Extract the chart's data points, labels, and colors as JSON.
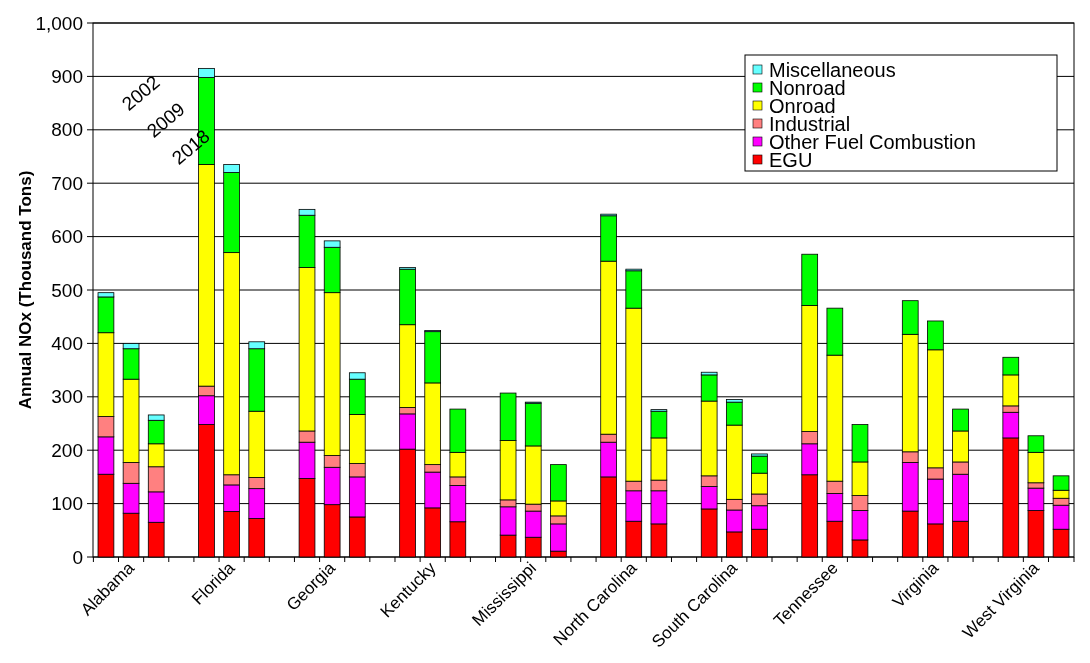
{
  "chart_data": {
    "type": "bar",
    "stacked": true,
    "ylabel": "Annual NOx (Thousand Tons)",
    "categories": [
      null,
      "Alabama",
      null,
      null,
      null,
      "Florida",
      null,
      null,
      null,
      "Georgia",
      null,
      null,
      null,
      "Kentucky",
      null,
      null,
      null,
      "Mississippi",
      null,
      null,
      null,
      "North Carolina",
      null,
      null,
      null,
      "South Carolina",
      null,
      null,
      null,
      "Tennessee",
      null,
      null,
      null,
      "Virginia",
      null,
      null,
      null,
      "West Virginia",
      null
    ],
    "series": [
      {
        "name": "EGU",
        "color": "#ff0000",
        "values": [
          155,
          82,
          65,
          null,
          248,
          85,
          72,
          null,
          147,
          98,
          75,
          null,
          202,
          92,
          66,
          null,
          41,
          37,
          11,
          null,
          150,
          67,
          62,
          null,
          90,
          47,
          52,
          null,
          154,
          67,
          32,
          null,
          86,
          62,
          67,
          null,
          223,
          87,
          52
        ]
      },
      {
        "name": "Other Fuel Combustion",
        "color": "#ff00ff",
        "values": [
          70,
          56,
          57,
          null,
          54,
          50,
          56,
          null,
          68,
          70,
          75,
          null,
          66,
          67,
          68,
          null,
          53,
          49,
          51,
          null,
          65,
          57,
          62,
          null,
          42,
          41,
          44,
          null,
          58,
          52,
          55,
          null,
          91,
          84,
          88,
          null,
          48,
          42,
          45
        ]
      },
      {
        "name": "Industrial",
        "color": "#ff8080",
        "values": [
          38,
          39,
          47,
          null,
          18,
          19,
          21,
          null,
          21,
          22,
          25,
          null,
          12,
          14,
          16,
          null,
          13,
          13,
          15,
          null,
          15,
          18,
          20,
          null,
          20,
          20,
          22,
          null,
          23,
          23,
          28,
          null,
          20,
          21,
          23,
          null,
          12,
          10,
          13
        ]
      },
      {
        "name": "Onroad",
        "color": "#ffff00",
        "values": [
          157,
          156,
          43,
          null,
          415,
          416,
          124,
          null,
          306,
          305,
          92,
          null,
          155,
          153,
          46,
          null,
          111,
          109,
          28,
          null,
          324,
          324,
          79,
          null,
          140,
          139,
          39,
          null,
          236,
          236,
          63,
          null,
          220,
          221,
          58,
          null,
          58,
          57,
          15
        ]
      },
      {
        "name": "Nonroad",
        "color": "#00ff00",
        "values": [
          67,
          57,
          44,
          null,
          163,
          150,
          117,
          null,
          98,
          85,
          66,
          null,
          104,
          96,
          81,
          null,
          89,
          80,
          68,
          null,
          85,
          70,
          50,
          null,
          49,
          43,
          32,
          null,
          96,
          88,
          70,
          null,
          63,
          54,
          41,
          null,
          33,
          31,
          27
        ]
      },
      {
        "name": "Miscellaneous",
        "color": "#66ffff",
        "values": [
          8,
          10,
          10,
          null,
          17,
          15,
          13,
          null,
          11,
          12,
          12,
          null,
          3,
          2,
          0,
          null,
          0,
          2,
          0,
          null,
          3,
          3,
          3,
          null,
          5,
          5,
          4,
          null,
          0,
          0,
          0,
          null,
          0,
          0,
          0,
          null,
          0,
          0,
          0
        ]
      }
    ],
    "ylim": [
      0,
      1000
    ],
    "yticks": [
      0,
      100,
      200,
      300,
      400,
      500,
      600,
      700,
      800,
      900,
      {
        "value": 1000,
        "label": "1,000"
      }
    ],
    "grid": "y",
    "legend": "top right",
    "annotations": [
      "2002",
      "2009",
      "2018"
    ]
  }
}
